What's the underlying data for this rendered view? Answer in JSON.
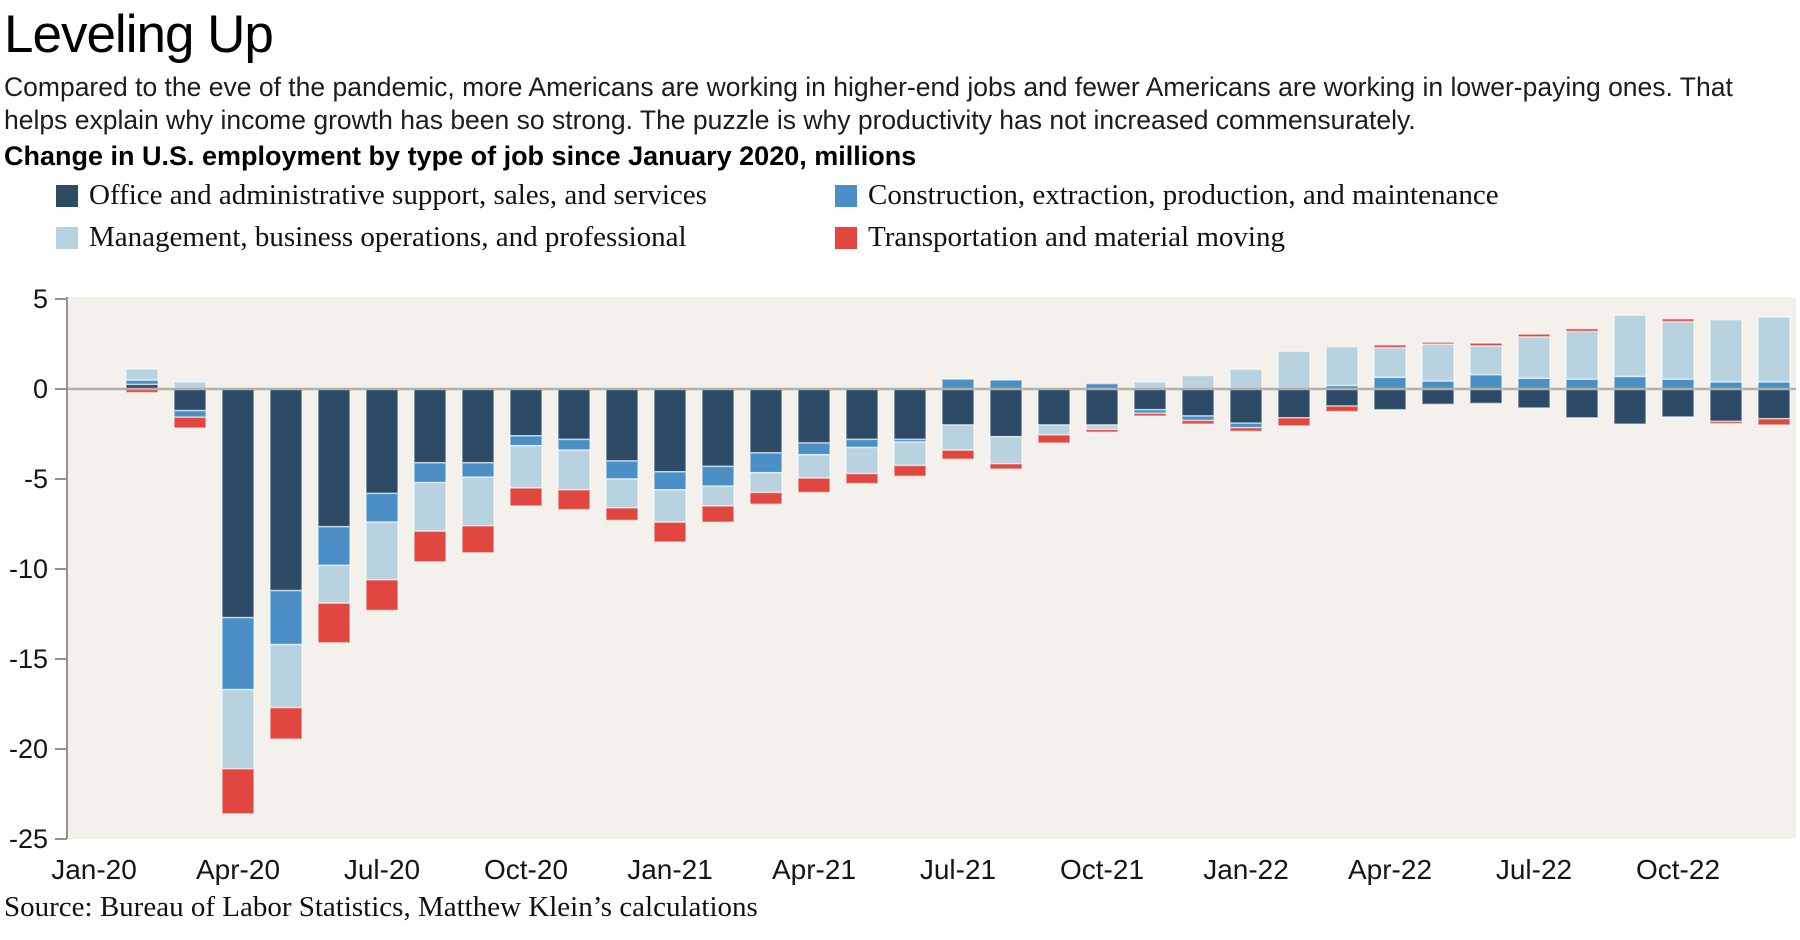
{
  "page": {
    "title": "Leveling Up",
    "subtitle": "Compared to the eve of the pandemic, more Americans are working in higher-end jobs and fewer Americans are working in lower-paying ones. That helps explain why income growth has been so strong. The puzzle is why productivity has not increased commensurately.",
    "heading": "Change in U.S. employment by type of job since January 2020, millions",
    "source": "Source: Bureau of Labor Statistics, Matthew Klein’s calculations"
  },
  "chart_data": {
    "type": "bar",
    "stacked": true,
    "title": "Change in U.S. employment by type of job since January 2020, millions",
    "xlabel": "",
    "ylabel": "",
    "ylim": [
      -25,
      5
    ],
    "y_ticks": [
      5,
      0,
      -5,
      -10,
      -15,
      -20,
      -25
    ],
    "x_tick_every": 3,
    "grid": false,
    "legend_position": "top",
    "plot_bg": "#f4f1ec",
    "zero_line_color": "#b4b1ac",
    "axis_color": "#96938f",
    "bar_outline": "rgba(255,255,255,0.55)",
    "categories": [
      "Jan-20",
      "Feb-20",
      "Mar-20",
      "Apr-20",
      "May-20",
      "Jun-20",
      "Jul-20",
      "Aug-20",
      "Sep-20",
      "Oct-20",
      "Nov-20",
      "Dec-20",
      "Jan-21",
      "Feb-21",
      "Mar-21",
      "Apr-21",
      "May-21",
      "Jun-21",
      "Jul-21",
      "Aug-21",
      "Sep-21",
      "Oct-21",
      "Nov-21",
      "Dec-21",
      "Jan-22",
      "Feb-22",
      "Mar-22",
      "Apr-22",
      "May-22",
      "Jun-22",
      "Jul-22",
      "Aug-22",
      "Sep-22",
      "Oct-22",
      "Nov-22",
      "Dec-22"
    ],
    "series": [
      {
        "name": "Office and administrative support, sales, and services",
        "color": "#2d4b66",
        "values": [
          0,
          0.26,
          -1.2,
          -12.7,
          -11.2,
          -7.65,
          -5.8,
          -4.1,
          -4.1,
          -2.6,
          -2.8,
          -4.0,
          -4.6,
          -4.3,
          -3.55,
          -3.0,
          -2.8,
          -2.8,
          -2.0,
          -2.65,
          -2.0,
          -2.0,
          -1.15,
          -1.5,
          -1.9,
          -1.6,
          -0.95,
          -1.15,
          -0.85,
          -0.8,
          -1.05,
          -1.6,
          -1.95,
          -1.55,
          -1.8,
          -1.65
        ]
      },
      {
        "name": "Construction, extraction, production, and maintenance",
        "color": "#4a90c6",
        "values": [
          0,
          0.24,
          -0.37,
          -4.0,
          -3.0,
          -2.15,
          -1.6,
          -1.1,
          -0.8,
          -0.55,
          -0.6,
          -1.0,
          -1.0,
          -1.1,
          -1.1,
          -0.65,
          -0.45,
          -0.15,
          0.55,
          0.5,
          0.0,
          0.3,
          -0.2,
          -0.25,
          -0.25,
          0.0,
          0.2,
          0.65,
          0.45,
          0.8,
          0.6,
          0.55,
          0.7,
          0.55,
          0.4,
          0.4
        ]
      },
      {
        "name": "Management, business operations, and professional",
        "color": "#b9d2e0",
        "values": [
          0,
          0.61,
          0.4,
          -4.4,
          -3.5,
          -2.1,
          -3.2,
          -2.7,
          -2.7,
          -2.35,
          -2.2,
          -1.6,
          -1.8,
          -1.1,
          -1.1,
          -1.3,
          -1.45,
          -1.3,
          -1.4,
          -1.5,
          -0.55,
          -0.25,
          0.4,
          0.75,
          1.1,
          2.1,
          2.15,
          1.65,
          2.05,
          1.6,
          2.3,
          2.65,
          3.4,
          3.2,
          3.45,
          3.6
        ]
      },
      {
        "name": "Transportation and material moving",
        "color": "#e2473f",
        "values": [
          0,
          -0.2,
          -0.6,
          -2.5,
          -1.75,
          -2.2,
          -1.7,
          -1.7,
          -1.5,
          -1.0,
          -1.1,
          -0.7,
          -1.1,
          -0.9,
          -0.65,
          -0.8,
          -0.55,
          -0.6,
          -0.5,
          -0.3,
          -0.45,
          -0.15,
          -0.15,
          -0.2,
          -0.2,
          -0.45,
          -0.3,
          0.15,
          0.1,
          0.15,
          0.15,
          0.15,
          0.0,
          0.15,
          -0.12,
          -0.35
        ]
      }
    ]
  }
}
